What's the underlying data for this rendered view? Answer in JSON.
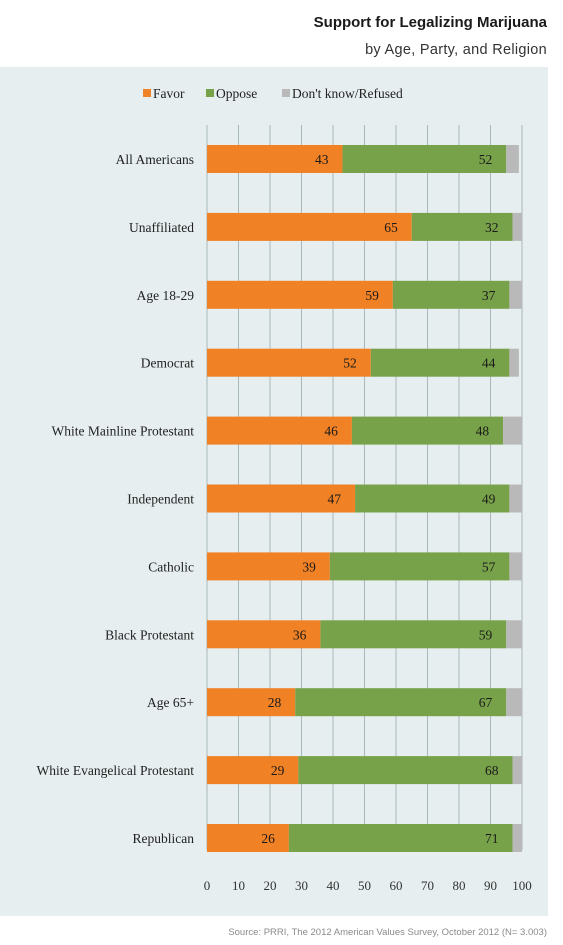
{
  "chart_data": {
    "type": "bar",
    "orientation": "horizontal",
    "stacked": true,
    "title": "Support for Legalizing Marijuana",
    "subtitle": "by Age, Party, and Religion",
    "categories": [
      "All Americans",
      "Unaffiliated",
      "Age 18-29",
      "Democrat",
      "White Mainline Protestant",
      "Independent",
      "Catholic",
      "Black Protestant",
      "Age 65+",
      "White Evangelical Protestant",
      "Republican"
    ],
    "series": [
      {
        "name": "Favor",
        "color": "#f08125",
        "values": [
          43,
          65,
          59,
          52,
          46,
          47,
          39,
          36,
          28,
          29,
          26
        ]
      },
      {
        "name": "Oppose",
        "color": "#78a24a",
        "values": [
          52,
          32,
          37,
          44,
          48,
          49,
          57,
          59,
          67,
          68,
          71
        ]
      },
      {
        "name": "Don't know/Refused",
        "color": "#b9b9b9",
        "values": [
          4,
          3,
          4,
          3,
          6,
          4,
          4,
          5,
          5,
          3,
          3
        ]
      }
    ],
    "data_labels_series": [
      "Favor",
      "Oppose"
    ],
    "xlim": [
      0,
      100
    ],
    "xticks": [
      0,
      10,
      20,
      30,
      40,
      50,
      60,
      70,
      80,
      90,
      100
    ],
    "grid": true,
    "legend_position": "top"
  },
  "source": "Source: PRRI, The 2012 American Values Survey, October 2012 (N= 3.003)"
}
